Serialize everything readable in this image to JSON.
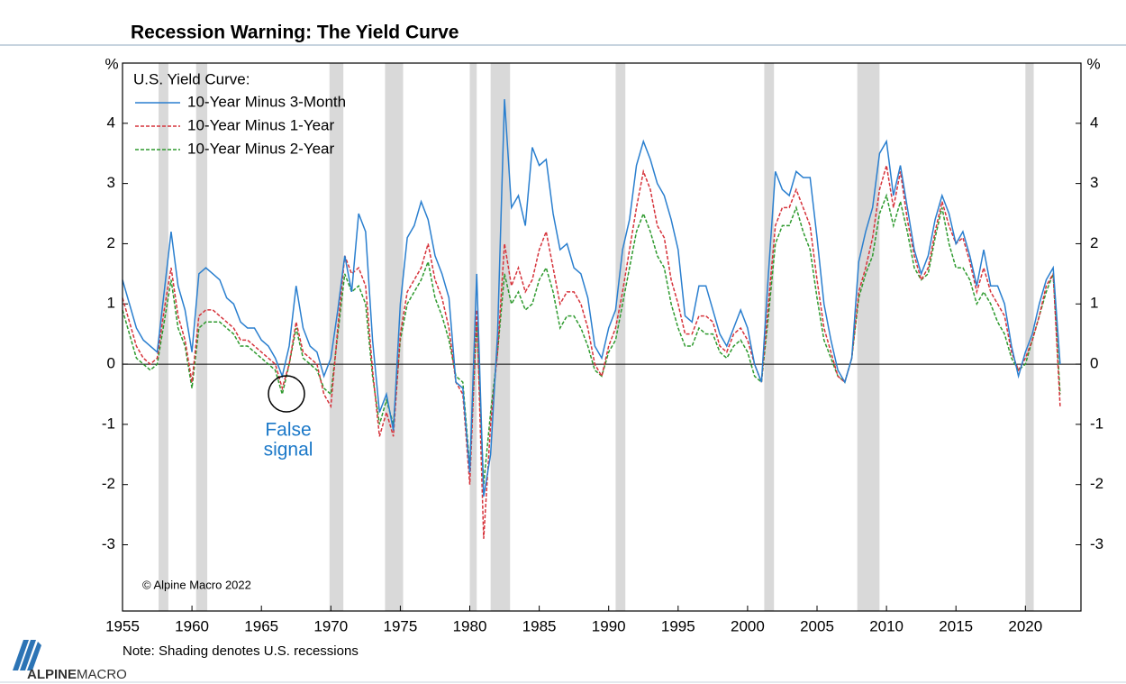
{
  "chart_data": {
    "type": "line",
    "title": "Recession Warning: The Yield Curve",
    "y_label": "%",
    "y2_label": "%",
    "legend_title": "U.S. Yield Curve:",
    "legend": "upper left",
    "annotation": [
      "False",
      "signal"
    ],
    "copyright": "© Alpine Macro 2022",
    "note": "Note: Shading denotes U.S. recessions",
    "brand": [
      "ALPINE",
      "MACRO"
    ],
    "xlim": [
      1955,
      2024
    ],
    "xticks": [
      1955,
      1960,
      1965,
      1970,
      1975,
      1980,
      1985,
      1990,
      1995,
      2000,
      2005,
      2010,
      2015,
      2020
    ],
    "ylim": [
      -4.1,
      5
    ],
    "yticks": [
      -3,
      -2,
      -1,
      0,
      1,
      2,
      3,
      4
    ],
    "y2lim": [
      -4.1,
      5
    ],
    "y2ticks": [
      -3,
      -2,
      -1,
      0,
      1,
      2,
      3,
      4
    ],
    "recession_color": "#d9d9d9",
    "recessions": [
      [
        1957.6,
        1958.3
      ],
      [
        1960.3,
        1961.1
      ],
      [
        1969.9,
        1970.9
      ],
      [
        1973.9,
        1975.2
      ],
      [
        1980.0,
        1980.5
      ],
      [
        1981.5,
        1982.9
      ],
      [
        1990.5,
        1991.2
      ],
      [
        2001.2,
        2001.9
      ],
      [
        2007.9,
        2009.5
      ],
      [
        2020.0,
        2020.6
      ]
    ],
    "x": [
      1955,
      1955.5,
      1956,
      1956.5,
      1957,
      1957.5,
      1958,
      1958.5,
      1959,
      1959.5,
      1960,
      1960.5,
      1961,
      1961.5,
      1962,
      1962.5,
      1963,
      1963.5,
      1964,
      1964.5,
      1965,
      1965.5,
      1966,
      1966.5,
      1967,
      1967.5,
      1968,
      1968.5,
      1969,
      1969.5,
      1970,
      1970.5,
      1971,
      1971.5,
      1972,
      1972.5,
      1973,
      1973.5,
      1974,
      1974.5,
      1975,
      1975.5,
      1976,
      1976.5,
      1977,
      1977.5,
      1978,
      1978.5,
      1979,
      1979.5,
      1980,
      1980.5,
      1981,
      1981.5,
      1982,
      1982.5,
      1983,
      1983.5,
      1984,
      1984.5,
      1985,
      1985.5,
      1986,
      1986.5,
      1987,
      1987.5,
      1988,
      1988.5,
      1989,
      1989.5,
      1990,
      1990.5,
      1991,
      1991.5,
      1992,
      1992.5,
      1993,
      1993.5,
      1994,
      1994.5,
      1995,
      1995.5,
      1996,
      1996.5,
      1997,
      1997.5,
      1998,
      1998.5,
      1999,
      1999.5,
      2000,
      2000.5,
      2001,
      2001.5,
      2002,
      2002.5,
      2003,
      2003.5,
      2004,
      2004.5,
      2005,
      2005.5,
      2006,
      2006.5,
      2007,
      2007.5,
      2008,
      2008.5,
      2009,
      2009.5,
      2010,
      2010.5,
      2011,
      2011.5,
      2012,
      2012.5,
      2013,
      2013.5,
      2014,
      2014.5,
      2015,
      2015.5,
      2016,
      2016.5,
      2017,
      2017.5,
      2018,
      2018.5,
      2019,
      2019.5,
      2020,
      2020.5,
      2021,
      2021.5,
      2022,
      2022.5
    ],
    "series": [
      {
        "name": "10-Year Minus 3-Month",
        "color": "#2a7fcf",
        "dash": "solid",
        "values": [
          1.4,
          1.0,
          0.6,
          0.4,
          0.3,
          0.2,
          1.2,
          2.2,
          1.3,
          0.9,
          0.2,
          1.5,
          1.6,
          1.5,
          1.4,
          1.1,
          1.0,
          0.7,
          0.6,
          0.6,
          0.4,
          0.3,
          0.1,
          -0.2,
          0.3,
          1.3,
          0.6,
          0.3,
          0.2,
          -0.2,
          0.1,
          0.9,
          1.8,
          1.2,
          2.5,
          2.2,
          0.4,
          -0.8,
          -0.5,
          -1.1,
          1.0,
          2.1,
          2.3,
          2.7,
          2.4,
          1.8,
          1.5,
          1.1,
          -0.3,
          -0.4,
          -1.8,
          1.5,
          -2.2,
          -1.5,
          0.5,
          4.4,
          2.6,
          2.8,
          2.3,
          3.6,
          3.3,
          3.4,
          2.5,
          1.9,
          2.0,
          1.6,
          1.5,
          1.1,
          0.3,
          0.1,
          0.6,
          0.9,
          1.9,
          2.4,
          3.3,
          3.7,
          3.4,
          3.0,
          2.8,
          2.4,
          1.9,
          0.8,
          0.7,
          1.3,
          1.3,
          0.9,
          0.5,
          0.3,
          0.6,
          0.9,
          0.6,
          0.0,
          -0.3,
          1.5,
          3.2,
          2.9,
          2.8,
          3.2,
          3.1,
          3.1,
          2.1,
          1.0,
          0.4,
          -0.1,
          -0.3,
          0.1,
          1.7,
          2.2,
          2.6,
          3.5,
          3.7,
          2.8,
          3.3,
          2.6,
          1.9,
          1.5,
          1.8,
          2.4,
          2.8,
          2.5,
          2.0,
          2.2,
          1.8,
          1.3,
          1.9,
          1.3,
          1.3,
          1.0,
          0.3,
          -0.2,
          0.2,
          0.5,
          1.0,
          1.4,
          1.6,
          0.0
        ]
      },
      {
        "name": "10-Year Minus 1-Year",
        "color": "#d6333b",
        "dash": "dashed",
        "values": [
          1.1,
          0.7,
          0.3,
          0.1,
          0.0,
          0.1,
          0.9,
          1.6,
          0.8,
          0.4,
          -0.3,
          0.8,
          0.9,
          0.9,
          0.8,
          0.7,
          0.6,
          0.4,
          0.4,
          0.3,
          0.2,
          0.1,
          0.0,
          -0.4,
          0.0,
          0.7,
          0.2,
          0.1,
          0.0,
          -0.5,
          -0.7,
          0.6,
          1.8,
          1.5,
          1.6,
          1.3,
          -0.1,
          -1.2,
          -0.8,
          -1.2,
          0.5,
          1.2,
          1.4,
          1.6,
          2.0,
          1.4,
          1.1,
          0.6,
          -0.3,
          -0.5,
          -2.0,
          0.9,
          -2.9,
          -1.0,
          0.2,
          2.0,
          1.3,
          1.6,
          1.2,
          1.4,
          1.9,
          2.2,
          1.6,
          1.0,
          1.2,
          1.2,
          1.0,
          0.6,
          0.0,
          -0.2,
          0.3,
          0.6,
          1.2,
          1.9,
          2.6,
          3.2,
          2.9,
          2.3,
          2.1,
          1.4,
          1.0,
          0.5,
          0.5,
          0.8,
          0.8,
          0.7,
          0.3,
          0.2,
          0.5,
          0.6,
          0.4,
          0.0,
          -0.3,
          1.0,
          2.3,
          2.6,
          2.6,
          2.9,
          2.6,
          2.3,
          1.4,
          0.6,
          0.2,
          -0.2,
          -0.3,
          0.1,
          1.2,
          1.6,
          2.1,
          2.9,
          3.3,
          2.6,
          3.2,
          2.4,
          1.8,
          1.4,
          1.6,
          2.2,
          2.7,
          2.3,
          2.0,
          2.1,
          1.7,
          1.2,
          1.6,
          1.2,
          1.0,
          0.8,
          0.2,
          -0.1,
          0.1,
          0.4,
          0.8,
          1.3,
          1.5,
          -0.7
        ]
      },
      {
        "name": "10-Year Minus 2-Year",
        "color": "#2e9a2e",
        "dash": "dashed",
        "values": [
          0.9,
          0.5,
          0.1,
          0.0,
          -0.1,
          0.0,
          0.7,
          1.4,
          0.6,
          0.3,
          -0.4,
          0.6,
          0.7,
          0.7,
          0.7,
          0.6,
          0.5,
          0.3,
          0.3,
          0.2,
          0.1,
          0.0,
          -0.1,
          -0.5,
          0.0,
          0.6,
          0.1,
          0.0,
          -0.1,
          -0.4,
          -0.5,
          0.5,
          1.5,
          1.2,
          1.3,
          1.0,
          -0.2,
          -1.0,
          -0.6,
          -1.0,
          0.4,
          1.0,
          1.2,
          1.4,
          1.7,
          1.1,
          0.8,
          0.4,
          -0.2,
          -0.3,
          -1.7,
          0.7,
          -2.0,
          -0.8,
          0.2,
          1.5,
          1.0,
          1.2,
          0.9,
          1.0,
          1.4,
          1.6,
          1.2,
          0.6,
          0.8,
          0.8,
          0.6,
          0.3,
          -0.1,
          -0.2,
          0.2,
          0.4,
          1.0,
          1.6,
          2.2,
          2.5,
          2.2,
          1.8,
          1.6,
          1.0,
          0.6,
          0.3,
          0.3,
          0.6,
          0.5,
          0.5,
          0.2,
          0.1,
          0.3,
          0.4,
          0.2,
          -0.2,
          -0.3,
          0.8,
          2.0,
          2.3,
          2.3,
          2.6,
          2.2,
          1.9,
          1.1,
          0.4,
          0.1,
          -0.2,
          -0.3,
          0.1,
          1.1,
          1.5,
          1.8,
          2.5,
          2.8,
          2.3,
          2.7,
          2.2,
          1.6,
          1.4,
          1.5,
          2.1,
          2.6,
          2.0,
          1.6,
          1.6,
          1.4,
          1.0,
          1.2,
          1.0,
          0.7,
          0.5,
          0.1,
          -0.1,
          0.0,
          0.4,
          0.8,
          1.2,
          1.5,
          -0.5
        ]
      }
    ]
  }
}
